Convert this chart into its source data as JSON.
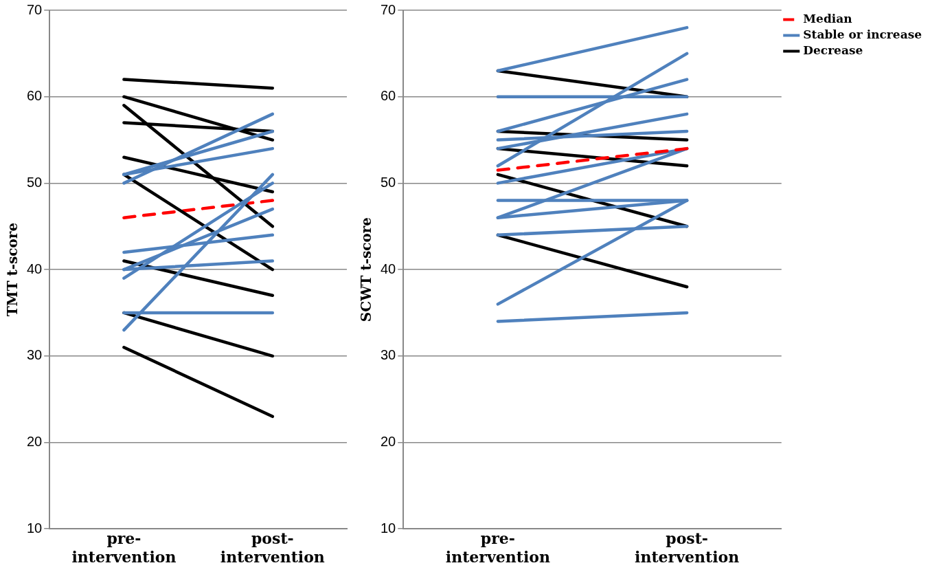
{
  "chart_data": [
    {
      "type": "line",
      "ylabel": "TMT t-score",
      "categories": [
        "pre-\nintervention",
        "post-\nintervention"
      ],
      "ylim": [
        10,
        70
      ],
      "yticks": [
        10,
        20,
        30,
        40,
        50,
        60,
        70
      ],
      "grid": "y",
      "legend": false,
      "marker": "none",
      "series": [
        {
          "color": "#4f81bd",
          "values": [
            50,
            58
          ]
        },
        {
          "color": "#4f81bd",
          "values": [
            51,
            56
          ]
        },
        {
          "color": "#4f81bd",
          "values": [
            51,
            54
          ]
        },
        {
          "color": "#4f81bd",
          "values": [
            42,
            44
          ]
        },
        {
          "color": "#4f81bd",
          "values": [
            40,
            41
          ]
        },
        {
          "color": "#4f81bd",
          "values": [
            40,
            47
          ]
        },
        {
          "color": "#4f81bd",
          "values": [
            39,
            50
          ]
        },
        {
          "color": "#4f81bd",
          "values": [
            33,
            51
          ]
        },
        {
          "color": "#4f81bd",
          "values": [
            35,
            35
          ]
        },
        {
          "color": "#000000",
          "values": [
            62,
            61
          ]
        },
        {
          "color": "#000000",
          "values": [
            60,
            55
          ]
        },
        {
          "color": "#000000",
          "values": [
            59,
            45
          ]
        },
        {
          "color": "#000000",
          "values": [
            57,
            56
          ]
        },
        {
          "color": "#000000",
          "values": [
            53,
            49
          ]
        },
        {
          "color": "#000000",
          "values": [
            51,
            40
          ]
        },
        {
          "color": "#000000",
          "values": [
            41,
            37
          ]
        },
        {
          "color": "#000000",
          "values": [
            35,
            30
          ]
        },
        {
          "color": "#000000",
          "values": [
            31,
            23
          ]
        },
        {
          "color": "#ff0000",
          "values": [
            46,
            48
          ],
          "line_style": "dashed"
        }
      ]
    },
    {
      "type": "line",
      "ylabel": "SCWT t-score",
      "categories": [
        "pre-\nintervention",
        "post-\nintervention"
      ],
      "ylim": [
        10,
        70
      ],
      "yticks": [
        10,
        20,
        30,
        40,
        50,
        60,
        70
      ],
      "grid": "y",
      "legend": "top right",
      "marker": "none",
      "series": [
        {
          "name": "Median",
          "color": "#ff0000",
          "values": [
            51.5,
            54
          ],
          "line_style": "dashed"
        },
        {
          "name": "Stable or increase",
          "color": "#4f81bd",
          "values": [
            63,
            68
          ]
        },
        {
          "color": "#4f81bd",
          "values": [
            60,
            60
          ]
        },
        {
          "color": "#4f81bd",
          "values": [
            56,
            62
          ]
        },
        {
          "color": "#4f81bd",
          "values": [
            52,
            65
          ]
        },
        {
          "color": "#4f81bd",
          "values": [
            55,
            56
          ]
        },
        {
          "color": "#4f81bd",
          "values": [
            54,
            58
          ]
        },
        {
          "color": "#4f81bd",
          "values": [
            50,
            54
          ]
        },
        {
          "color": "#4f81bd",
          "values": [
            48,
            48
          ]
        },
        {
          "color": "#4f81bd",
          "values": [
            46,
            48
          ]
        },
        {
          "color": "#4f81bd",
          "values": [
            46,
            54
          ]
        },
        {
          "color": "#4f81bd",
          "values": [
            44,
            45
          ]
        },
        {
          "color": "#4f81bd",
          "values": [
            36,
            48
          ]
        },
        {
          "color": "#4f81bd",
          "values": [
            34,
            35
          ]
        },
        {
          "name": "Decrease",
          "color": "#000000",
          "values": [
            63,
            60
          ]
        },
        {
          "color": "#000000",
          "values": [
            56,
            55
          ]
        },
        {
          "color": "#000000",
          "values": [
            54,
            52
          ]
        },
        {
          "color": "#000000",
          "values": [
            51,
            45
          ]
        },
        {
          "color": "#000000",
          "values": [
            44,
            38
          ]
        }
      ]
    }
  ]
}
